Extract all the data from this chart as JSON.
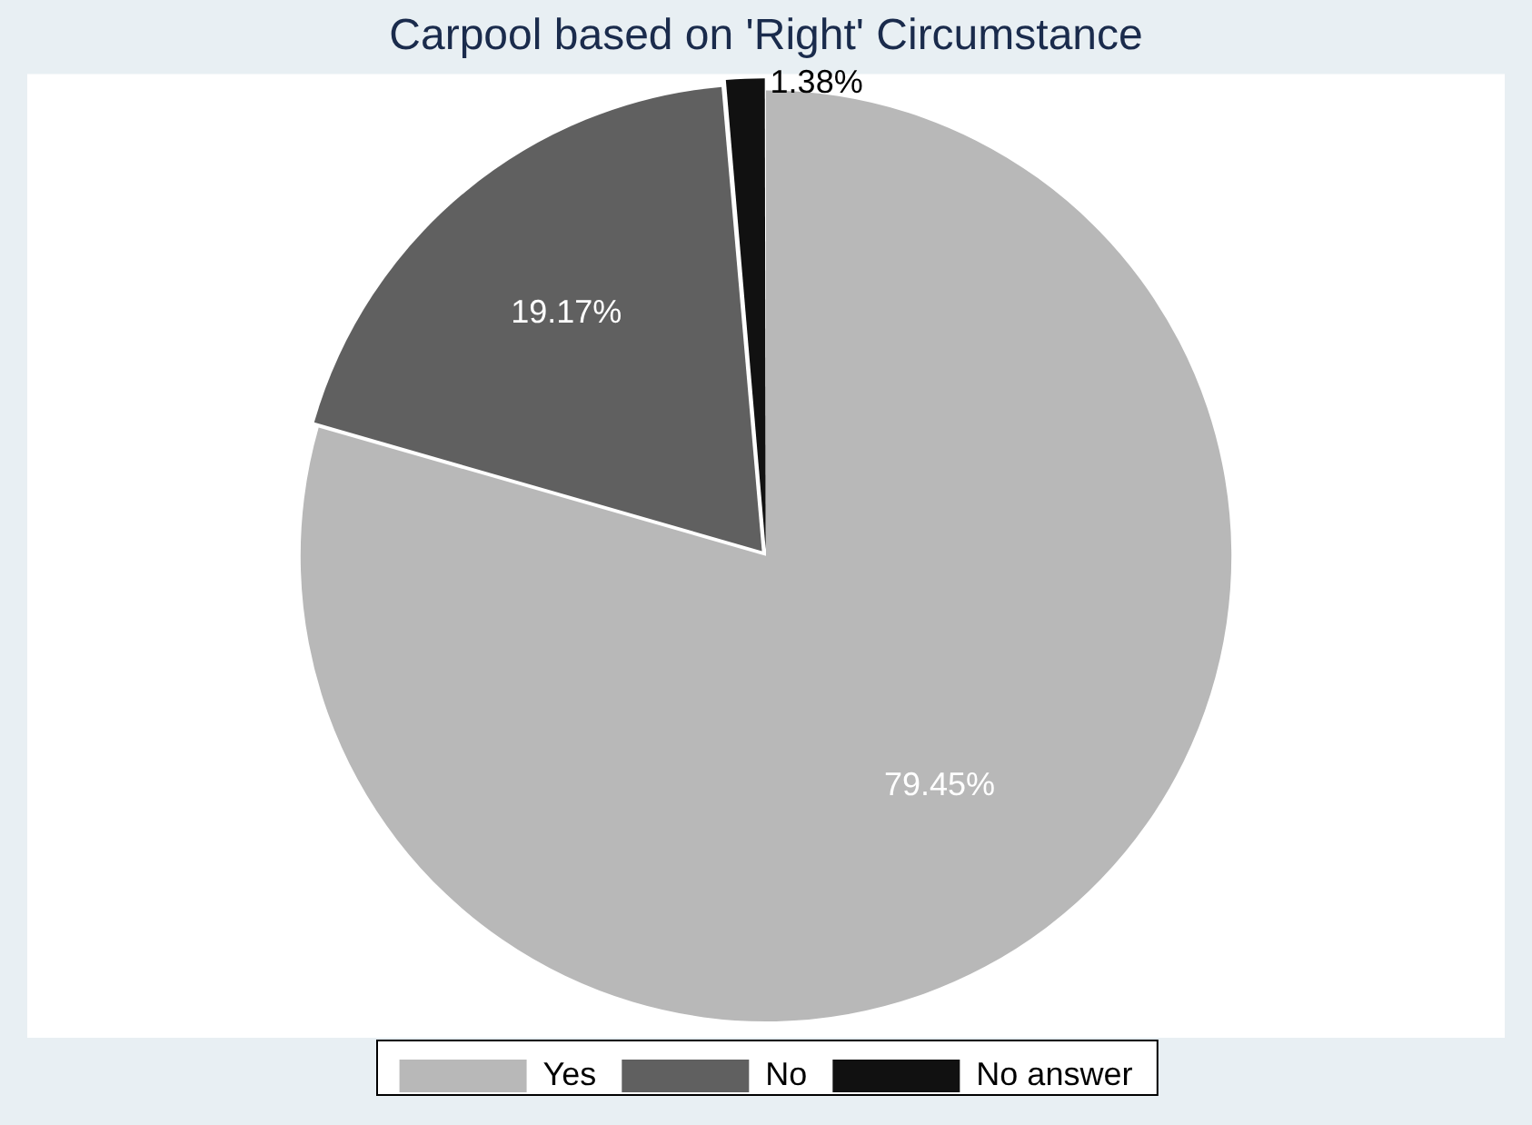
{
  "chart_data": {
    "type": "pie",
    "title": "Carpool based on 'Right' Circumstance",
    "categories": [
      "Yes",
      "No",
      "No answer"
    ],
    "values": [
      79.45,
      19.17,
      1.38
    ],
    "colors": [
      "#b8b8b8",
      "#606060",
      "#111111"
    ],
    "value_labels": [
      "79.45%",
      "19.17%",
      "1.38%"
    ],
    "legend": "bottom"
  }
}
